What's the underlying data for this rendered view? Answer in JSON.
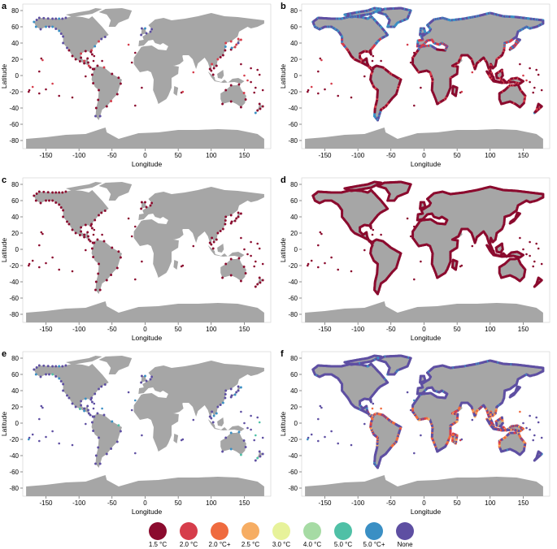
{
  "axes": {
    "xlabel": "Longitude",
    "ylabel": "Latitude",
    "xticks": [
      "-150",
      "-100",
      "-50",
      "0",
      "50",
      "100",
      "150"
    ],
    "yticks": [
      "80",
      "60",
      "40",
      "20",
      "0",
      "-20",
      "-40",
      "-60",
      "-80"
    ],
    "xlim": [
      -185,
      190
    ],
    "ylim": [
      -90,
      88
    ]
  },
  "colors": {
    "land": "#a6a6a6",
    "c1_5": "#8b0b2e",
    "c2_0": "#d63d4b",
    "c2_0plus": "#ef6b3f",
    "c2_5": "#f6ad63",
    "c3_0": "#e7f29a",
    "c4_0": "#a6dba4",
    "c5_0": "#4fc0a6",
    "c5_0plus": "#3a8fc4",
    "none": "#5e4fa2"
  },
  "panels": [
    {
      "letter": "a",
      "style": "sparse-mixed"
    },
    {
      "letter": "b",
      "style": "dense-mixed"
    },
    {
      "letter": "c",
      "style": "sparse-red"
    },
    {
      "letter": "d",
      "style": "dense-red"
    },
    {
      "letter": "e",
      "style": "sparse-blue"
    },
    {
      "letter": "f",
      "style": "dense-blue"
    }
  ],
  "legend": [
    {
      "label": "1.5 °C",
      "color": "#8b0b2e"
    },
    {
      "label": "2.0 °C",
      "color": "#d63d4b"
    },
    {
      "label": "2.0 °C+",
      "color": "#ef6b3f"
    },
    {
      "label": "2.5 °C",
      "color": "#f6ad63"
    },
    {
      "label": "3.0 °C",
      "color": "#e7f29a"
    },
    {
      "label": "4.0 °C",
      "color": "#a6dba4"
    },
    {
      "label": "5.0 °C",
      "color": "#4fc0a6"
    },
    {
      "label": "5.0 °C+",
      "color": "#3a8fc4"
    },
    {
      "label": "None",
      "color": "#5e4fa2"
    }
  ]
}
